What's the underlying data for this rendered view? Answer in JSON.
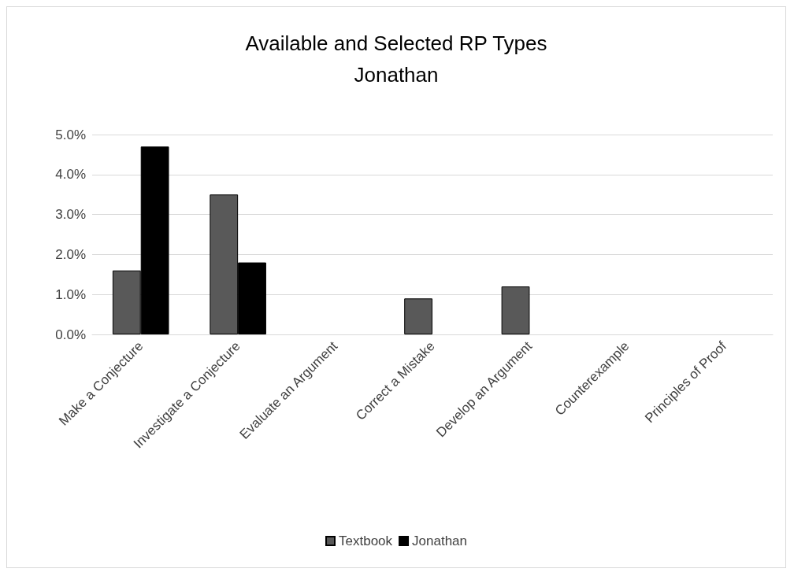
{
  "chart_data": {
    "type": "bar",
    "title": "Available and Selected RP Types",
    "subtitle": "Jonathan",
    "categories": [
      "Make a Conjecture",
      "Investigate a Conjecture",
      "Evaluate an Argument",
      "Correct a Mistake",
      "Develop an Argument",
      "Counterexample",
      "Principles of Proof"
    ],
    "series": [
      {
        "name": "Textbook",
        "color": "#595959",
        "values": [
          1.6,
          3.5,
          null,
          0.9,
          1.2,
          null,
          null
        ]
      },
      {
        "name": "Jonathan",
        "color": "#000000",
        "values": [
          4.7,
          1.8,
          null,
          null,
          null,
          null,
          null
        ]
      }
    ],
    "ylim": [
      0,
      5
    ],
    "yticks": [
      {
        "value": 0,
        "label": "0.0%"
      },
      {
        "value": 1,
        "label": "1.0%"
      },
      {
        "value": 2,
        "label": "2.0%"
      },
      {
        "value": 3,
        "label": "3.0%"
      },
      {
        "value": 4,
        "label": "4.0%"
      },
      {
        "value": 5,
        "label": "5.0%"
      }
    ],
    "grid": "y",
    "legend": "bottom"
  }
}
